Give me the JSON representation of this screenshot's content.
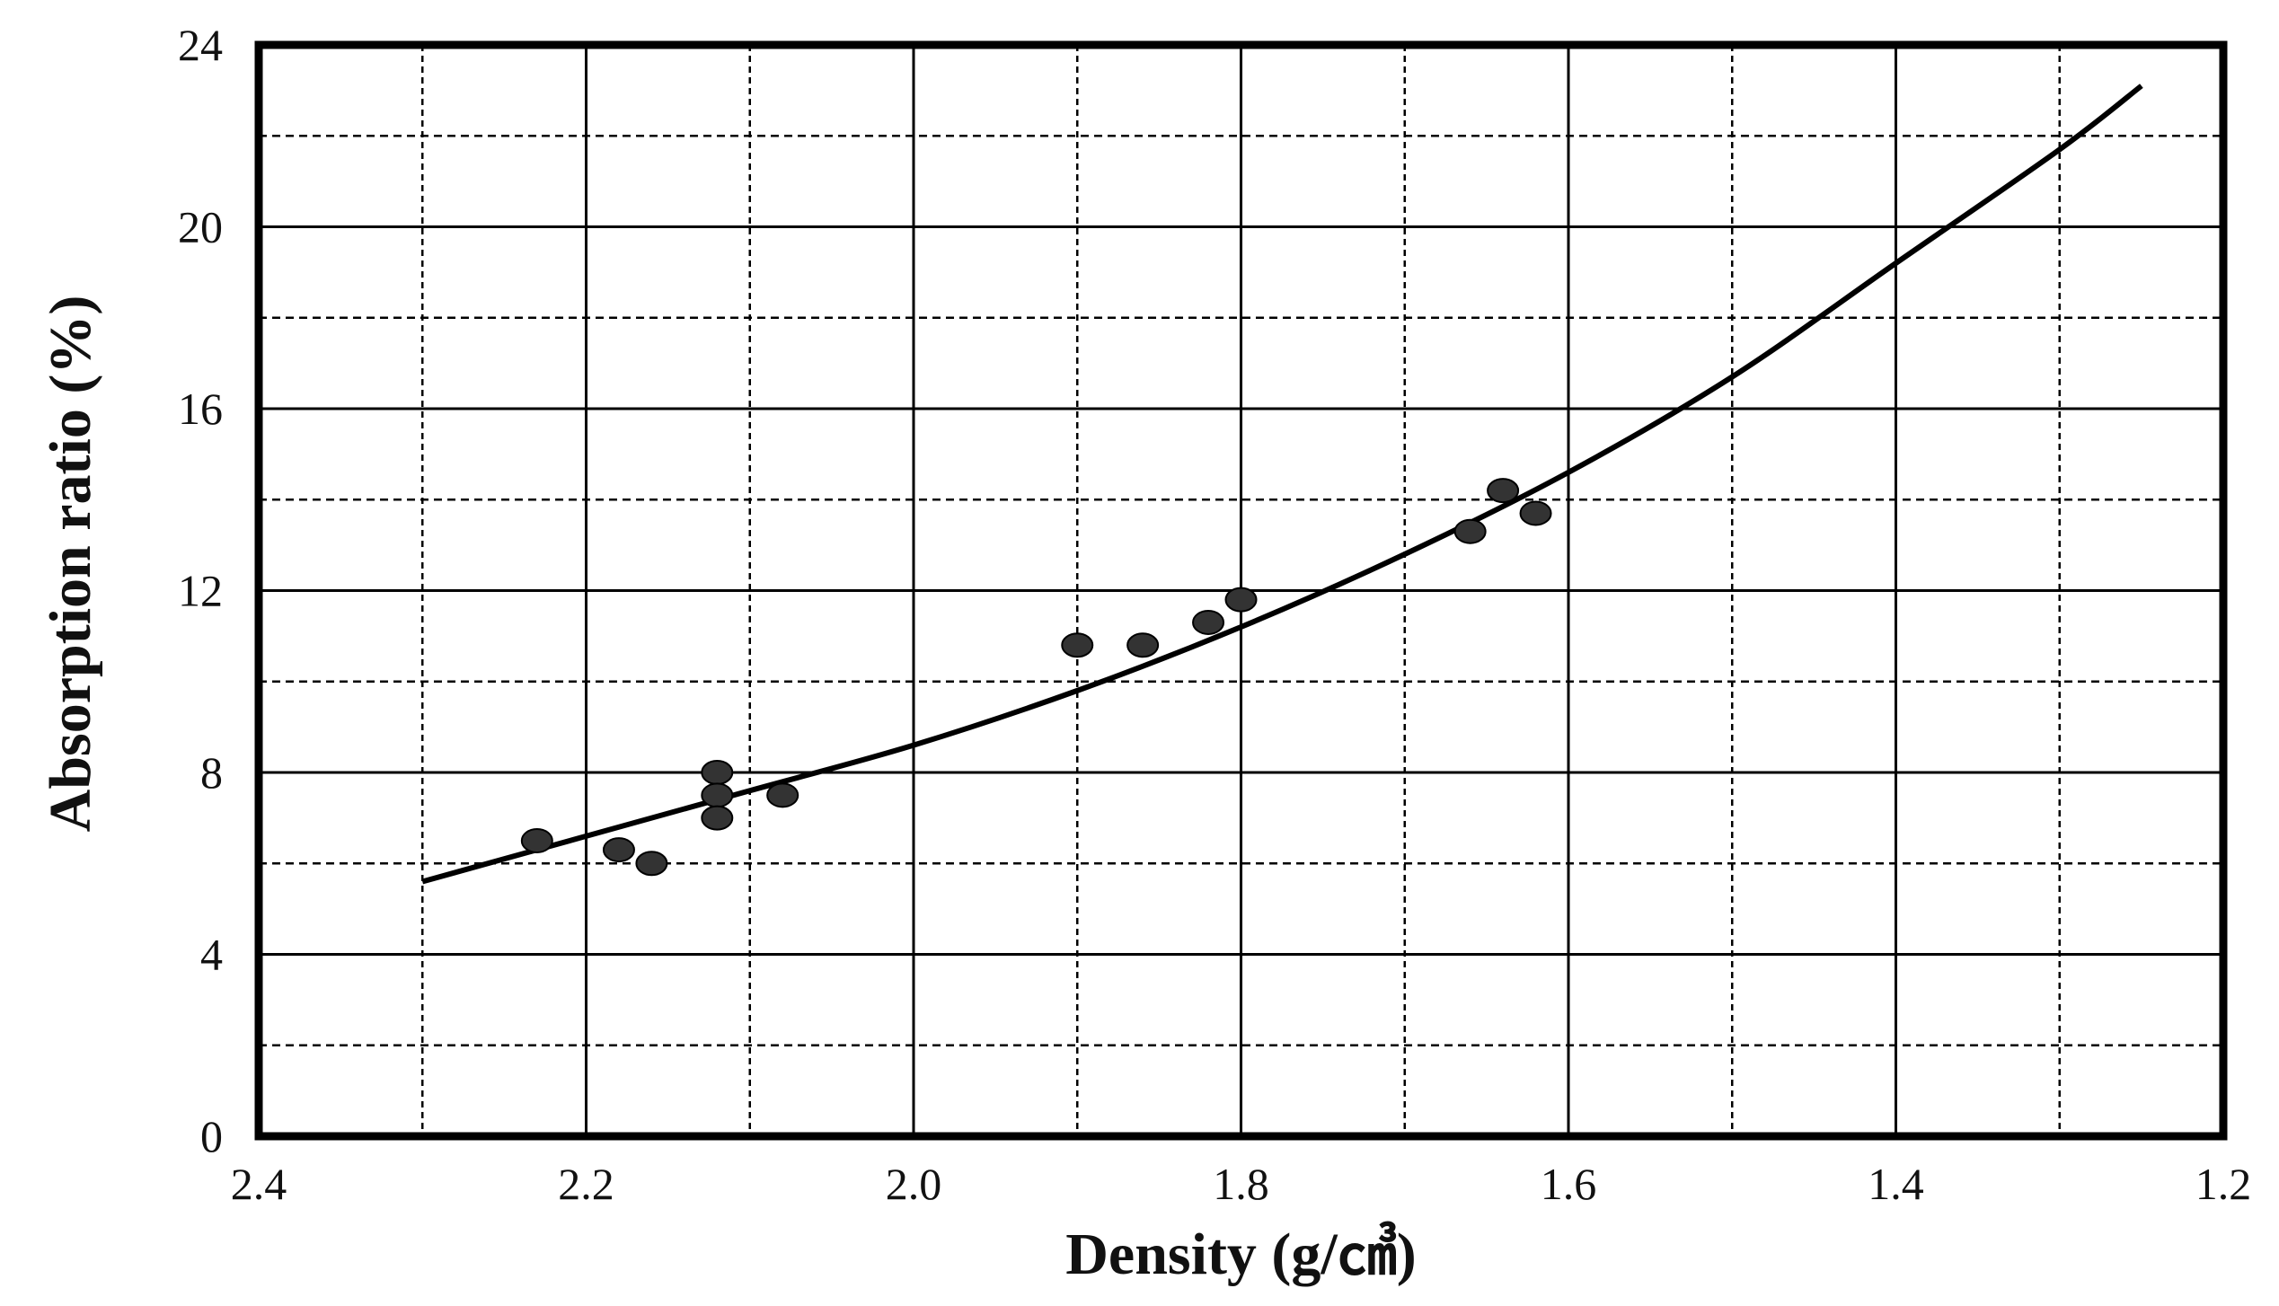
{
  "chart_data": {
    "type": "scatter",
    "title": "",
    "xlabel": "Density (g/㎤)",
    "ylabel": "Absorption ratio (%)",
    "xlim": [
      2.4,
      1.2
    ],
    "ylim": [
      0,
      24
    ],
    "x_reversed": true,
    "x_ticks": [
      "2.4",
      "2.2",
      "2.0",
      "1.8",
      "1.6",
      "1.4",
      "1.2"
    ],
    "y_ticks": [
      "0",
      "4",
      "8",
      "12",
      "16",
      "20",
      "24"
    ],
    "grid": true,
    "legend": "none",
    "colors": {
      "points": "#333333",
      "curve": "#000000",
      "grid": "#000000",
      "frame": "#000000"
    },
    "points": [
      {
        "x": 2.23,
        "y": 6.5
      },
      {
        "x": 2.18,
        "y": 6.3
      },
      {
        "x": 2.16,
        "y": 6.0
      },
      {
        "x": 2.12,
        "y": 8.0
      },
      {
        "x": 2.12,
        "y": 7.5
      },
      {
        "x": 2.12,
        "y": 7.0
      },
      {
        "x": 2.08,
        "y": 7.5
      },
      {
        "x": 1.9,
        "y": 10.8
      },
      {
        "x": 1.86,
        "y": 10.8
      },
      {
        "x": 1.82,
        "y": 11.3
      },
      {
        "x": 1.8,
        "y": 11.8
      },
      {
        "x": 1.66,
        "y": 13.3
      },
      {
        "x": 1.64,
        "y": 14.2
      },
      {
        "x": 1.62,
        "y": 13.7
      }
    ],
    "fit_curve": {
      "x": [
        2.3,
        2.2,
        2.1,
        2.0,
        1.9,
        1.8,
        1.7,
        1.6,
        1.5,
        1.4,
        1.3,
        1.25
      ],
      "y": [
        5.6,
        6.6,
        7.6,
        8.6,
        9.8,
        11.2,
        12.8,
        14.6,
        16.7,
        19.2,
        21.7,
        23.1
      ]
    }
  }
}
